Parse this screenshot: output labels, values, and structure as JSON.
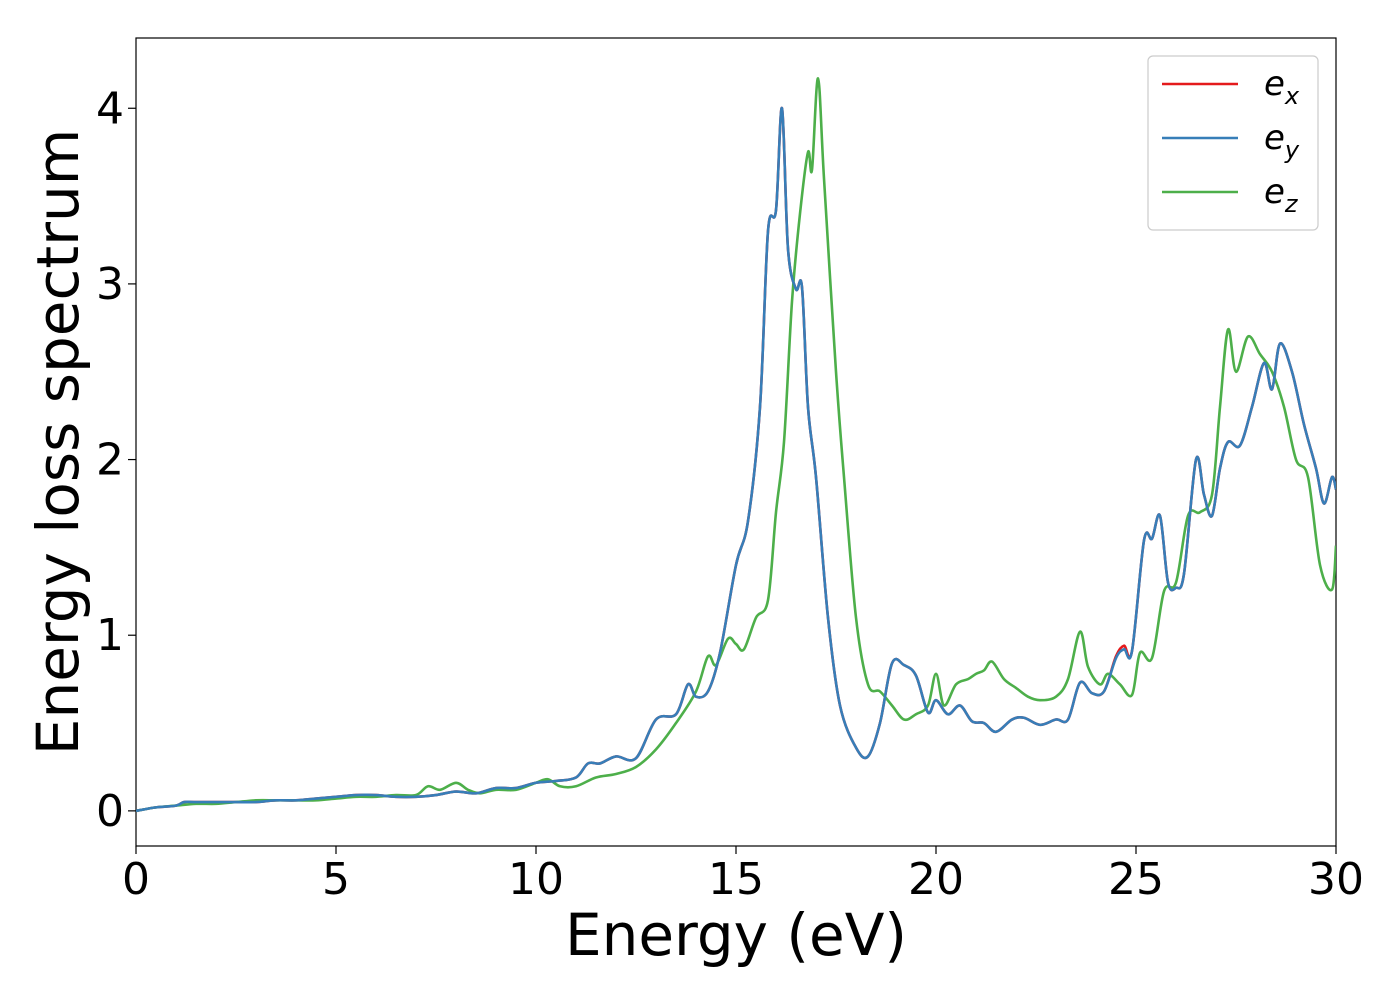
{
  "chart_data": {
    "type": "line",
    "title": "",
    "xlabel": "Energy (eV)",
    "ylabel": "Energy loss spectrum",
    "xlim": [
      0,
      30
    ],
    "ylim": [
      -0.2,
      4.4
    ],
    "xticks": [
      0,
      5,
      10,
      15,
      20,
      25,
      30
    ],
    "yticks": [
      0,
      1,
      2,
      3,
      4
    ],
    "grid": false,
    "legend_position": "top-right",
    "series": [
      {
        "name": "e_x",
        "legend_main": "e",
        "legend_sub": "x",
        "color": "#e41a1c",
        "x": [
          0,
          0.5,
          1,
          1.2,
          1.5,
          2,
          2.5,
          3,
          3.5,
          4,
          4.5,
          5,
          5.5,
          6,
          6.5,
          7,
          7.5,
          8,
          8.5,
          9,
          9.5,
          10,
          10.5,
          11,
          11.3,
          11.6,
          12,
          12.5,
          13,
          13.5,
          13.8,
          14,
          14.3,
          14.6,
          15,
          15.3,
          15.6,
          15.8,
          16,
          16.15,
          16.3,
          16.5,
          16.65,
          16.8,
          17,
          17.3,
          17.6,
          18,
          18.3,
          18.6,
          18.9,
          19.2,
          19.5,
          19.8,
          20,
          20.3,
          20.6,
          20.9,
          21.2,
          21.5,
          21.9,
          22.2,
          22.6,
          23,
          23.3,
          23.6,
          23.9,
          24.2,
          24.5,
          24.7,
          24.9,
          25.2,
          25.4,
          25.6,
          25.8,
          26,
          26.2,
          26.5,
          26.7,
          26.9,
          27.1,
          27.3,
          27.6,
          27.9,
          28.2,
          28.4,
          28.6,
          28.9,
          29.2,
          29.5,
          29.7,
          29.9,
          30
        ],
        "y": [
          0,
          0.02,
          0.03,
          0.05,
          0.05,
          0.05,
          0.05,
          0.05,
          0.06,
          0.06,
          0.07,
          0.08,
          0.09,
          0.09,
          0.08,
          0.08,
          0.09,
          0.11,
          0.1,
          0.13,
          0.13,
          0.16,
          0.17,
          0.19,
          0.27,
          0.27,
          0.31,
          0.3,
          0.52,
          0.55,
          0.72,
          0.65,
          0.68,
          0.9,
          1.4,
          1.65,
          2.3,
          3.3,
          3.42,
          4.0,
          3.2,
          2.97,
          2.98,
          2.3,
          1.9,
          1.1,
          0.6,
          0.36,
          0.31,
          0.5,
          0.84,
          0.83,
          0.77,
          0.56,
          0.63,
          0.55,
          0.6,
          0.51,
          0.5,
          0.45,
          0.52,
          0.53,
          0.49,
          0.52,
          0.52,
          0.73,
          0.67,
          0.68,
          0.88,
          0.94,
          0.91,
          1.54,
          1.55,
          1.68,
          1.3,
          1.27,
          1.35,
          2.0,
          1.8,
          1.68,
          1.95,
          2.1,
          2.08,
          2.3,
          2.55,
          2.4,
          2.66,
          2.5,
          2.2,
          1.95,
          1.75,
          1.9,
          1.83
        ]
      },
      {
        "name": "e_y",
        "legend_main": "e",
        "legend_sub": "y",
        "color": "#377eb8",
        "x": [
          0,
          0.5,
          1,
          1.2,
          1.5,
          2,
          2.5,
          3,
          3.5,
          4,
          4.5,
          5,
          5.5,
          6,
          6.5,
          7,
          7.5,
          8,
          8.5,
          9,
          9.5,
          10,
          10.5,
          11,
          11.3,
          11.6,
          12,
          12.5,
          13,
          13.5,
          13.8,
          14,
          14.3,
          14.6,
          15,
          15.3,
          15.6,
          15.8,
          16,
          16.15,
          16.3,
          16.5,
          16.65,
          16.8,
          17,
          17.3,
          17.6,
          18,
          18.3,
          18.6,
          18.9,
          19.2,
          19.5,
          19.8,
          20,
          20.3,
          20.6,
          20.9,
          21.2,
          21.5,
          21.9,
          22.2,
          22.6,
          23,
          23.3,
          23.6,
          23.9,
          24.2,
          24.5,
          24.7,
          24.9,
          25.2,
          25.4,
          25.6,
          25.8,
          26,
          26.2,
          26.5,
          26.7,
          26.9,
          27.1,
          27.3,
          27.6,
          27.9,
          28.2,
          28.4,
          28.6,
          28.9,
          29.2,
          29.5,
          29.7,
          29.9,
          30
        ],
        "y": [
          0,
          0.02,
          0.03,
          0.05,
          0.05,
          0.05,
          0.05,
          0.05,
          0.06,
          0.06,
          0.07,
          0.08,
          0.09,
          0.09,
          0.08,
          0.08,
          0.09,
          0.11,
          0.1,
          0.13,
          0.13,
          0.16,
          0.17,
          0.19,
          0.27,
          0.27,
          0.31,
          0.3,
          0.52,
          0.55,
          0.72,
          0.65,
          0.68,
          0.9,
          1.4,
          1.65,
          2.3,
          3.3,
          3.42,
          4.0,
          3.2,
          2.97,
          2.98,
          2.3,
          1.9,
          1.1,
          0.6,
          0.36,
          0.31,
          0.5,
          0.84,
          0.83,
          0.77,
          0.56,
          0.63,
          0.55,
          0.6,
          0.51,
          0.5,
          0.45,
          0.52,
          0.53,
          0.49,
          0.52,
          0.52,
          0.73,
          0.67,
          0.68,
          0.87,
          0.92,
          0.91,
          1.54,
          1.55,
          1.68,
          1.3,
          1.27,
          1.35,
          2.0,
          1.8,
          1.68,
          1.95,
          2.1,
          2.08,
          2.3,
          2.55,
          2.4,
          2.66,
          2.5,
          2.2,
          1.95,
          1.75,
          1.9,
          1.83
        ]
      },
      {
        "name": "e_z",
        "legend_main": "e",
        "legend_sub": "z",
        "color": "#4daf4a",
        "x": [
          0,
          0.5,
          1,
          1.5,
          2,
          2.5,
          3,
          3.5,
          4,
          4.5,
          5,
          5.5,
          6,
          6.5,
          7,
          7.3,
          7.6,
          8,
          8.3,
          8.6,
          9,
          9.5,
          10,
          10.3,
          10.6,
          11,
          11.5,
          12,
          12.5,
          13,
          13.5,
          14,
          14.3,
          14.5,
          14.8,
          15,
          15.2,
          15.5,
          15.8,
          16,
          16.2,
          16.4,
          16.6,
          16.8,
          16.9,
          17.05,
          17.2,
          17.5,
          17.7,
          18,
          18.3,
          18.6,
          18.9,
          19.2,
          19.5,
          19.8,
          20,
          20.2,
          20.5,
          20.8,
          21,
          21.2,
          21.4,
          21.7,
          22,
          22.3,
          22.6,
          23,
          23.3,
          23.6,
          23.8,
          24.1,
          24.3,
          24.6,
          24.9,
          25.1,
          25.4,
          25.7,
          26,
          26.3,
          26.6,
          26.9,
          27.1,
          27.3,
          27.5,
          27.8,
          28.1,
          28.4,
          28.7,
          29,
          29.3,
          29.6,
          29.9,
          30
        ],
        "y": [
          0,
          0.02,
          0.03,
          0.04,
          0.04,
          0.05,
          0.06,
          0.06,
          0.06,
          0.06,
          0.07,
          0.08,
          0.08,
          0.09,
          0.09,
          0.14,
          0.12,
          0.16,
          0.12,
          0.1,
          0.12,
          0.12,
          0.16,
          0.18,
          0.14,
          0.14,
          0.19,
          0.21,
          0.25,
          0.35,
          0.5,
          0.68,
          0.88,
          0.83,
          0.98,
          0.95,
          0.92,
          1.1,
          1.2,
          1.7,
          2.1,
          2.9,
          3.4,
          3.75,
          3.65,
          4.17,
          3.6,
          2.5,
          1.9,
          1.1,
          0.72,
          0.68,
          0.6,
          0.52,
          0.55,
          0.6,
          0.78,
          0.6,
          0.72,
          0.75,
          0.78,
          0.8,
          0.85,
          0.75,
          0.7,
          0.65,
          0.63,
          0.65,
          0.75,
          1.02,
          0.82,
          0.72,
          0.78,
          0.72,
          0.66,
          0.9,
          0.87,
          1.25,
          1.3,
          1.68,
          1.7,
          1.8,
          2.3,
          2.74,
          2.5,
          2.7,
          2.6,
          2.5,
          2.3,
          2.0,
          1.9,
          1.4,
          1.26,
          1.51
        ]
      }
    ]
  }
}
